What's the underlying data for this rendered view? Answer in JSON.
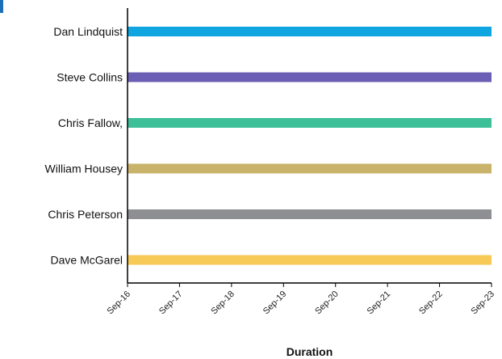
{
  "chart_data": {
    "type": "bar",
    "orientation": "horizontal",
    "xlabel": "Duration",
    "ylabel": "",
    "x_ticks": [
      "Sep-16",
      "Sep-17",
      "Sep-18",
      "Sep-19",
      "Sep-20",
      "Sep-21",
      "Sep-22",
      "Sep-23"
    ],
    "xlim": [
      "Sep-16",
      "Sep-23"
    ],
    "grid": false,
    "categories": [
      "Dan Lindquist",
      "Steve Collins",
      "Chris Fallow,",
      "William Housey",
      "Chris Peterson",
      "Dave McGarel"
    ],
    "bars": [
      {
        "category": "Dan Lindquist",
        "start": "Sep-16",
        "end": "Sep-23",
        "color": "#0ea5e0"
      },
      {
        "category": "Steve Collins",
        "start": "Sep-16",
        "end": "Sep-23",
        "color": "#6b5fb5"
      },
      {
        "category": "Chris Fallow,",
        "start": "Sep-16",
        "end": "Sep-23",
        "color": "#3dbf98"
      },
      {
        "category": "William Housey",
        "start": "Sep-16",
        "end": "Sep-23",
        "color": "#c9b36a"
      },
      {
        "category": "Chris Peterson",
        "start": "Sep-16",
        "end": "Sep-23",
        "color": "#8e8f93"
      },
      {
        "category": "Dave McGarel",
        "start": "Sep-16",
        "end": "Sep-23",
        "color": "#f7c956"
      }
    ]
  }
}
